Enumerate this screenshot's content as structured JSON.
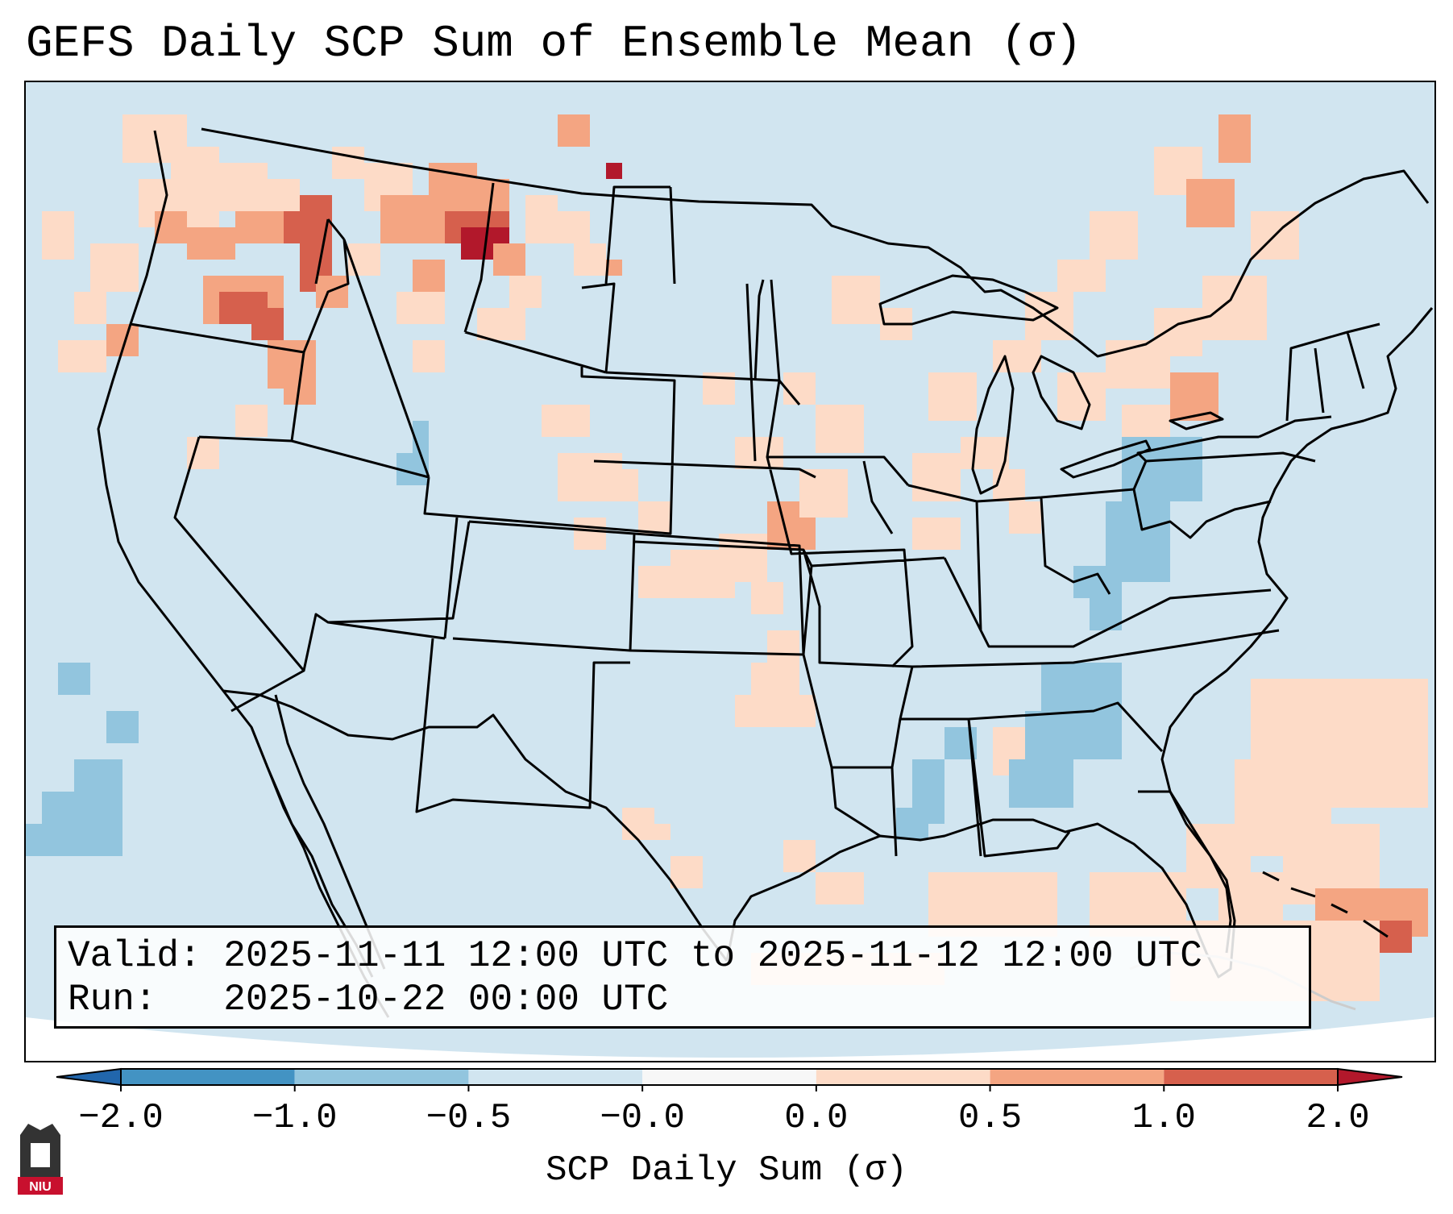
{
  "title": "GEFS Daily SCP Sum of Ensemble Mean (σ)",
  "info": {
    "valid_label": "Valid:",
    "valid_value": "2025-11-11 12:00 UTC to 2025-11-12 12:00 UTC",
    "run_label": "Run:",
    "run_value": "2025-10-22 00:00 UTC"
  },
  "colorbar": {
    "label": "SCP Daily Sum (σ)",
    "ticks": [
      "−2.0",
      "−1.0",
      "−0.5",
      "−0.0",
      "0.0",
      "0.5",
      "1.0",
      "2.0"
    ],
    "colors": [
      "#4393c3",
      "#92c5de",
      "#d1e5f0",
      "#f7f7f7",
      "#fddbc7",
      "#f4a582",
      "#d6604d"
    ],
    "under_color": "#2166ac",
    "over_color": "#b2182b"
  },
  "map": {
    "background_color": "#d1e5f0",
    "region": "Contiguous United States and surrounding areas"
  },
  "logo": {
    "text": "NIU",
    "brand_color": "#c8102e"
  }
}
